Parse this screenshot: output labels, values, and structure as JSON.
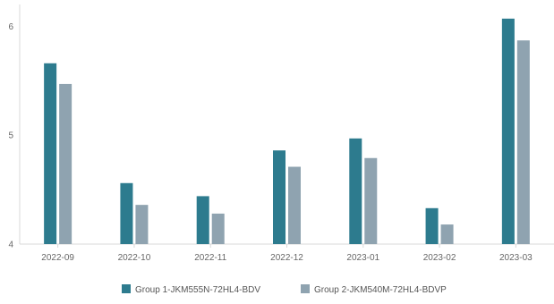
{
  "chart_data": {
    "type": "bar",
    "title": "",
    "xlabel": "",
    "ylabel": "",
    "categories": [
      "2022-09",
      "2022-10",
      "2022-11",
      "2022-12",
      "2023-01",
      "2023-02",
      "2023-03"
    ],
    "series": [
      {
        "name": "Group 1-JKM555N-72HL4-BDV",
        "color": "#2d7b8e",
        "values": [
          5.66,
          4.56,
          4.44,
          4.86,
          4.97,
          4.33,
          6.07
        ]
      },
      {
        "name": "Group 2-JKM540M-72HL4-BDVP",
        "color": "#8fa3b0",
        "values": [
          5.47,
          4.36,
          4.28,
          4.71,
          4.79,
          4.18,
          5.87
        ]
      }
    ],
    "ylim": [
      4.0,
      6.2
    ],
    "yticks": [
      4,
      5,
      6
    ],
    "grid": false,
    "legend_position": "bottom"
  }
}
